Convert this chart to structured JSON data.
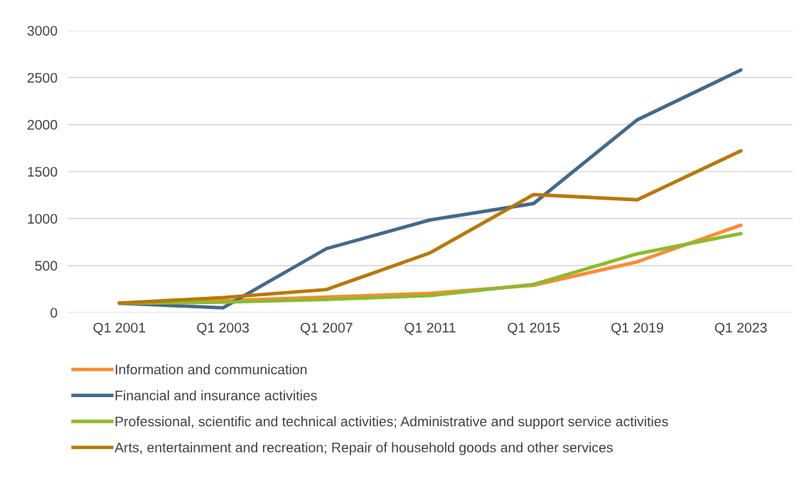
{
  "chart_data": {
    "type": "line",
    "categories": [
      "Q1 2001",
      "Q1 2003",
      "Q1 2007",
      "Q1 2011",
      "Q1 2015",
      "Q1 2019",
      "Q1 2023"
    ],
    "series": [
      {
        "name": "Information and communication",
        "color": "#ff8a33",
        "values": [
          100,
          125,
          165,
          205,
          290,
          540,
          930
        ]
      },
      {
        "name": "Financial and insurance activities",
        "color": "#44698a",
        "values": [
          100,
          50,
          680,
          985,
          1160,
          2050,
          2580
        ]
      },
      {
        "name": "Professional, scientific and technical activities; Administrative and support service activities",
        "color": "#8db92e",
        "values": [
          100,
          110,
          140,
          180,
          300,
          625,
          840
        ]
      },
      {
        "name": "Arts, entertainment and recreation; Repair of household goods and other services",
        "color": "#b8780a",
        "values": [
          100,
          160,
          245,
          635,
          1255,
          1200,
          1720
        ]
      }
    ],
    "ylim": [
      0,
      3000
    ],
    "yticks": [
      0,
      500,
      1000,
      1500,
      2000,
      2500,
      3000
    ],
    "grid": "y",
    "legend": "bottom",
    "marker": "none",
    "line_style": "solid"
  }
}
